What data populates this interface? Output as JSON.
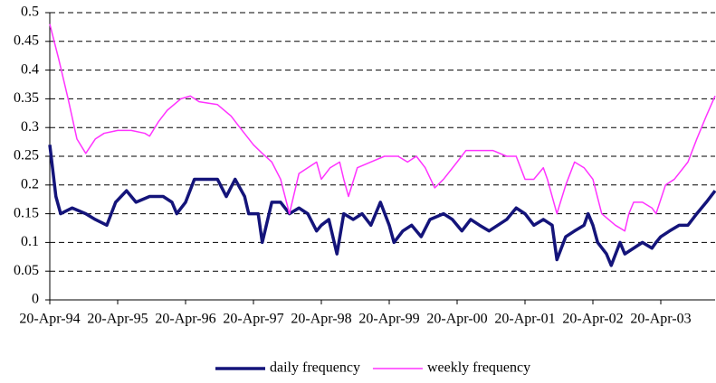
{
  "chart_data": {
    "type": "line",
    "xlim": [
      0,
      9.8
    ],
    "xticks": [
      {
        "value": 0,
        "label": "20-Apr-94"
      },
      {
        "value": 1,
        "label": "20-Apr-95"
      },
      {
        "value": 2,
        "label": "20-Apr-96"
      },
      {
        "value": 3,
        "label": "20-Apr-97"
      },
      {
        "value": 4,
        "label": "20-Apr-98"
      },
      {
        "value": 5,
        "label": "20-Apr-99"
      },
      {
        "value": 6,
        "label": "20-Apr-00"
      },
      {
        "value": 7,
        "label": "20-Apr-01"
      },
      {
        "value": 8,
        "label": "20-Apr-02"
      },
      {
        "value": 9,
        "label": "20-Apr-03"
      }
    ],
    "ylim": [
      0,
      0.5
    ],
    "yticks": [
      0,
      0.05,
      0.1,
      0.15,
      0.2,
      0.25,
      0.3,
      0.35,
      0.4,
      0.45,
      0.5
    ],
    "grid": true,
    "legend": "bottom",
    "series": [
      {
        "name": "daily frequency",
        "color": "#14147a",
        "width": 3.5,
        "x": [
          0,
          0.09,
          0.16,
          0.33,
          0.53,
          0.67,
          0.84,
          0.97,
          1.13,
          1.27,
          1.47,
          1.67,
          1.8,
          1.87,
          2,
          2.13,
          2.47,
          2.6,
          2.73,
          2.87,
          2.93,
          3.07,
          3.13,
          3.27,
          3.4,
          3.53,
          3.67,
          3.8,
          3.93,
          4,
          4.11,
          4.23,
          4.33,
          4.47,
          4.6,
          4.73,
          4.87,
          5,
          5.07,
          5.2,
          5.33,
          5.47,
          5.6,
          5.8,
          5.93,
          6.07,
          6.2,
          6.33,
          6.47,
          6.6,
          6.73,
          6.87,
          7,
          7.13,
          7.27,
          7.4,
          7.47,
          7.6,
          7.73,
          7.87,
          7.93,
          8,
          8.07,
          8.2,
          8.27,
          8.4,
          8.47,
          8.6,
          8.73,
          8.87,
          8.93,
          9,
          9.13,
          9.27,
          9.4,
          9.53,
          9.67,
          9.8
        ],
        "values": [
          0.27,
          0.18,
          0.15,
          0.16,
          0.15,
          0.14,
          0.13,
          0.17,
          0.19,
          0.17,
          0.18,
          0.18,
          0.17,
          0.15,
          0.17,
          0.21,
          0.21,
          0.18,
          0.21,
          0.18,
          0.15,
          0.15,
          0.1,
          0.17,
          0.17,
          0.15,
          0.16,
          0.15,
          0.12,
          0.13,
          0.14,
          0.08,
          0.15,
          0.14,
          0.15,
          0.13,
          0.17,
          0.13,
          0.1,
          0.12,
          0.13,
          0.11,
          0.14,
          0.15,
          0.14,
          0.12,
          0.14,
          0.13,
          0.12,
          0.13,
          0.14,
          0.16,
          0.15,
          0.13,
          0.14,
          0.13,
          0.07,
          0.11,
          0.12,
          0.13,
          0.15,
          0.13,
          0.1,
          0.08,
          0.06,
          0.1,
          0.08,
          0.09,
          0.1,
          0.09,
          0.1,
          0.11,
          0.12,
          0.13,
          0.13,
          0.15,
          0.17,
          0.19
        ]
      },
      {
        "name": "weekly frequency",
        "color": "#ff33ff",
        "width": 1.5,
        "x": [
          0,
          0.13,
          0.27,
          0.4,
          0.53,
          0.67,
          0.8,
          1,
          1.2,
          1.4,
          1.47,
          1.6,
          1.73,
          1.93,
          2.07,
          2.2,
          2.47,
          2.67,
          2.8,
          3,
          3.13,
          3.27,
          3.4,
          3.53,
          3.67,
          3.8,
          3.93,
          4,
          4.13,
          4.27,
          4.33,
          4.4,
          4.53,
          4.73,
          4.93,
          5.13,
          5.27,
          5.4,
          5.53,
          5.67,
          5.8,
          6,
          6.13,
          6.33,
          6.53,
          6.73,
          6.87,
          7,
          7.13,
          7.27,
          7.33,
          7.47,
          7.6,
          7.73,
          7.87,
          8,
          8.13,
          8.33,
          8.47,
          8.53,
          8.6,
          8.73,
          8.87,
          8.93,
          9.07,
          9.2,
          9.4,
          9.53,
          9.67,
          9.8
        ],
        "values": [
          0.48,
          0.42,
          0.35,
          0.28,
          0.255,
          0.28,
          0.29,
          0.295,
          0.295,
          0.29,
          0.285,
          0.31,
          0.33,
          0.35,
          0.355,
          0.345,
          0.34,
          0.32,
          0.3,
          0.27,
          0.255,
          0.24,
          0.21,
          0.15,
          0.22,
          0.23,
          0.24,
          0.21,
          0.23,
          0.24,
          0.21,
          0.18,
          0.23,
          0.24,
          0.25,
          0.25,
          0.24,
          0.25,
          0.23,
          0.195,
          0.21,
          0.24,
          0.26,
          0.26,
          0.26,
          0.25,
          0.25,
          0.21,
          0.21,
          0.23,
          0.21,
          0.15,
          0.2,
          0.24,
          0.23,
          0.21,
          0.15,
          0.13,
          0.12,
          0.15,
          0.17,
          0.17,
          0.16,
          0.15,
          0.2,
          0.21,
          0.24,
          0.28,
          0.32,
          0.355
        ]
      }
    ]
  }
}
